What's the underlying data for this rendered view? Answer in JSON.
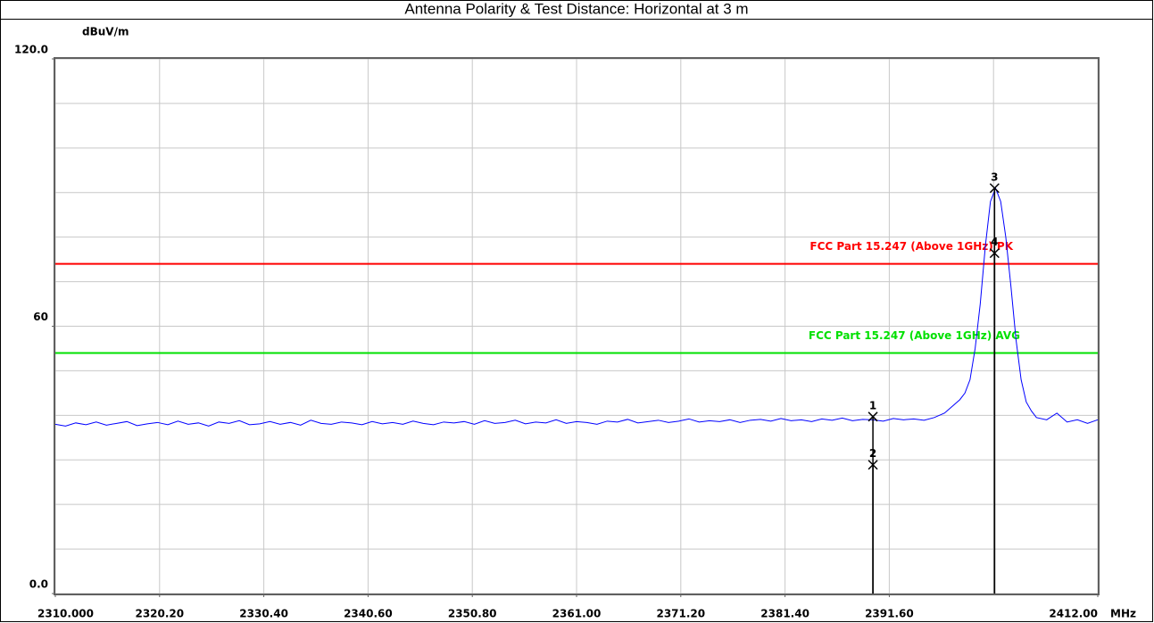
{
  "chart_data": {
    "type": "line",
    "title": "Antenna Polarity & Test Distance: Horizontal at 3 m",
    "ylabel": "dBuV/m",
    "xlabel": "MHz",
    "xlim": [
      2310,
      2412
    ],
    "ylim": [
      0,
      120
    ],
    "xticks": [
      {
        "value": 2310,
        "label": "2310.000"
      },
      {
        "value": 2320.2,
        "label": "2320.20"
      },
      {
        "value": 2330.4,
        "label": "2330.40"
      },
      {
        "value": 2340.6,
        "label": "2340.60"
      },
      {
        "value": 2350.8,
        "label": "2350.80"
      },
      {
        "value": 2361,
        "label": "2361.00"
      },
      {
        "value": 2371.2,
        "label": "2371.20"
      },
      {
        "value": 2381.4,
        "label": "2381.40"
      },
      {
        "value": 2391.6,
        "label": "2391.60"
      },
      {
        "value": 2412,
        "label": "2412.00"
      }
    ],
    "xgrid": [
      2310,
      2320.2,
      2330.4,
      2340.6,
      2350.8,
      2361,
      2371.2,
      2381.4,
      2391.6,
      2401.8,
      2412
    ],
    "yticks": [
      {
        "value": 0,
        "label": "0.0"
      },
      60,
      {
        "value": 120,
        "label": "120.0"
      }
    ],
    "ygrid": [
      0,
      10,
      20,
      30,
      40,
      50,
      60,
      70,
      80,
      90,
      100,
      110,
      120
    ],
    "grid": true,
    "color": "#0000ff",
    "x": [
      2310,
      2311,
      2312,
      2313,
      2314,
      2315,
      2316,
      2317,
      2318,
      2319,
      2320,
      2321,
      2322,
      2323,
      2324,
      2325,
      2326,
      2327,
      2328,
      2329,
      2330,
      2331,
      2332,
      2333,
      2334,
      2335,
      2336,
      2337,
      2338,
      2339,
      2340,
      2341,
      2342,
      2343,
      2344,
      2345,
      2346,
      2347,
      2348,
      2349,
      2350,
      2351,
      2352,
      2353,
      2354,
      2355,
      2356,
      2357,
      2358,
      2359,
      2360,
      2361,
      2362,
      2363,
      2364,
      2365,
      2366,
      2367,
      2368,
      2369,
      2370,
      2371,
      2372,
      2373,
      2374,
      2375,
      2376,
      2377,
      2378,
      2379,
      2380,
      2381,
      2382,
      2383,
      2384,
      2385,
      2386,
      2387,
      2388,
      2389,
      2390,
      2391,
      2392,
      2393,
      2394,
      2395,
      2396,
      2396.5,
      2397,
      2397.5,
      2398,
      2398.5,
      2399,
      2399.5,
      2400,
      2400.5,
      2401,
      2401.5,
      2402,
      2402.5,
      2403,
      2403.5,
      2404,
      2404.5,
      2405,
      2405.5,
      2406,
      2407,
      2408,
      2409,
      2410,
      2411,
      2412
    ],
    "values": [
      38.0,
      37.6,
      38.3,
      37.9,
      38.5,
      37.8,
      38.2,
      38.6,
      37.7,
      38.1,
      38.4,
      37.9,
      38.7,
      38.0,
      38.3,
      37.6,
      38.5,
      38.2,
      38.8,
      37.9,
      38.1,
      38.6,
      38.0,
      38.4,
      37.8,
      38.9,
      38.2,
      38.0,
      38.5,
      38.3,
      37.9,
      38.6,
      38.1,
      38.4,
      38.0,
      38.7,
      38.2,
      37.9,
      38.5,
      38.3,
      38.6,
      38.0,
      38.8,
      38.2,
      38.4,
      38.9,
      38.1,
      38.5,
      38.3,
      39.0,
      38.2,
      38.6,
      38.4,
      38.0,
      38.7,
      38.5,
      39.1,
      38.3,
      38.6,
      38.9,
      38.4,
      38.7,
      39.2,
      38.5,
      38.8,
      38.6,
      39.0,
      38.4,
      38.9,
      39.1,
      38.7,
      39.3,
      38.8,
      39.0,
      38.6,
      39.2,
      38.9,
      39.4,
      38.8,
      39.1,
      39.0,
      38.7,
      39.3,
      39.0,
      39.2,
      38.9,
      39.5,
      40,
      40.5,
      41.5,
      42.5,
      43.5,
      45,
      48,
      55,
      65,
      78,
      88,
      91,
      88,
      80,
      69,
      57,
      48,
      43,
      41,
      39.5,
      39,
      40.5,
      38.5,
      39,
      38.2,
      39
    ],
    "limits": [
      {
        "name": "FCC Part 15.247 (Above 1GHz) PK",
        "color": "#ff0000",
        "value": 74
      },
      {
        "name": "FCC Part 15.247 (Above 1GHz) AVG",
        "color": "#00e000",
        "value": 54
      }
    ],
    "markers": [
      {
        "label": "1",
        "x": 2390,
        "value": 39.7
      },
      {
        "label": "2",
        "x": 2390,
        "value": 28.9
      },
      {
        "label": "3",
        "x": 2401.9,
        "value": 91.0
      },
      {
        "label": "4",
        "x": 2401.9,
        "value": 76.4
      }
    ]
  }
}
